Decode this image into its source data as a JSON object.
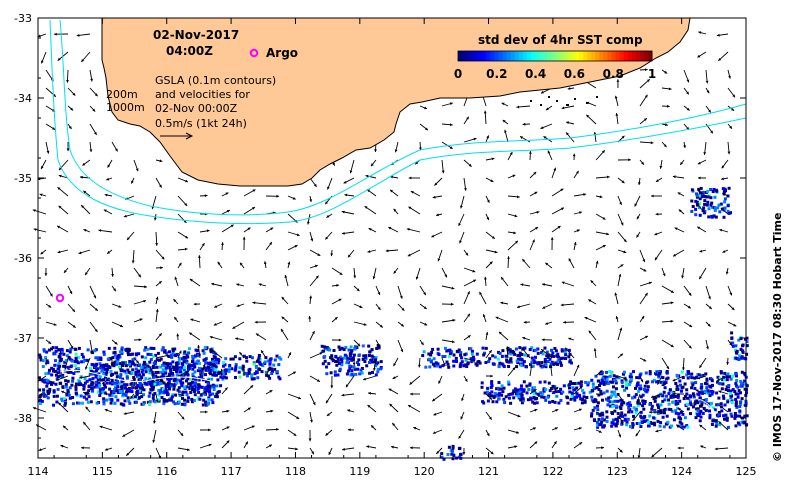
{
  "header": {
    "date": "02-Nov-2017",
    "time": "04:00Z",
    "argo_label": "Argo"
  },
  "legend": {
    "title": "std dev of 4hr SST comp",
    "ticks": [
      "0",
      "0.2",
      "0.4",
      "0.6",
      "0.8",
      "1"
    ],
    "colors": [
      "#000080",
      "#0000ff",
      "#0080ff",
      "#00ffff",
      "#80ff80",
      "#ffff00",
      "#ff8000",
      "#ff0000",
      "#800000"
    ]
  },
  "annotations": {
    "isobath_200": "200m",
    "isobath_1000": "1000m",
    "gsla_lines": [
      "GSLA (0.1m contours)",
      "and velocities for",
      "02-Nov 00:00Z",
      "0.5m/s (1kt 24h)"
    ]
  },
  "axes": {
    "x_ticks": [
      "114",
      "115",
      "116",
      "117",
      "118",
      "119",
      "120",
      "121",
      "122",
      "123",
      "124",
      "125"
    ],
    "y_ticks": [
      "-33",
      "-34",
      "-35",
      "-36",
      "-37",
      "-38"
    ],
    "x_range": [
      114,
      125
    ],
    "y_range": [
      -38.5,
      -33
    ]
  },
  "argo_floats": [
    {
      "lon": 117.33,
      "lat": -33.44
    },
    {
      "lon": 114.33,
      "lat": -36.48
    }
  ],
  "credit": "© IMOS 17-Nov-2017 08:30 Hobart Time",
  "colors": {
    "land": "#fec996",
    "isobath": "#00e0f0",
    "ocean": "#ffffff",
    "argo": "#ff00ff"
  }
}
